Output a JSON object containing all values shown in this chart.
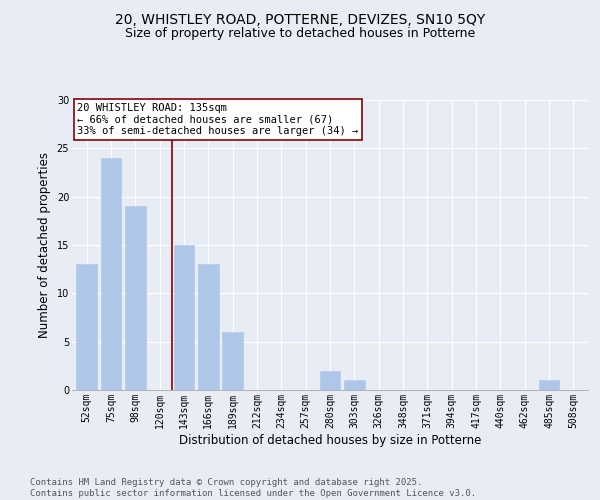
{
  "title_line1": "20, WHISTLEY ROAD, POTTERNE, DEVIZES, SN10 5QY",
  "title_line2": "Size of property relative to detached houses in Potterne",
  "xlabel": "Distribution of detached houses by size in Potterne",
  "ylabel": "Number of detached properties",
  "categories": [
    "52sqm",
    "75sqm",
    "98sqm",
    "120sqm",
    "143sqm",
    "166sqm",
    "189sqm",
    "212sqm",
    "234sqm",
    "257sqm",
    "280sqm",
    "303sqm",
    "326sqm",
    "348sqm",
    "371sqm",
    "394sqm",
    "417sqm",
    "440sqm",
    "462sqm",
    "485sqm",
    "508sqm"
  ],
  "values": [
    13,
    24,
    19,
    0,
    15,
    13,
    6,
    0,
    0,
    0,
    2,
    1,
    0,
    0,
    0,
    0,
    0,
    0,
    0,
    1,
    0
  ],
  "bar_color": "#aec6e8",
  "bar_edge_color": "#aec6e8",
  "vline_position": 3.5,
  "vline_color": "#8b0000",
  "annotation_text": "20 WHISTLEY ROAD: 135sqm\n← 66% of detached houses are smaller (67)\n33% of semi-detached houses are larger (34) →",
  "annotation_box_facecolor": "#ffffff",
  "annotation_box_edgecolor": "#8b0000",
  "ylim": [
    0,
    30
  ],
  "yticks": [
    0,
    5,
    10,
    15,
    20,
    25,
    30
  ],
  "background_color": "#e8edf5",
  "grid_color": "#ffffff",
  "footer_text": "Contains HM Land Registry data © Crown copyright and database right 2025.\nContains public sector information licensed under the Open Government Licence v3.0.",
  "title_fontsize": 10,
  "subtitle_fontsize": 9,
  "axis_label_fontsize": 8.5,
  "tick_fontsize": 7,
  "annotation_fontsize": 7.5,
  "footer_fontsize": 6.5
}
